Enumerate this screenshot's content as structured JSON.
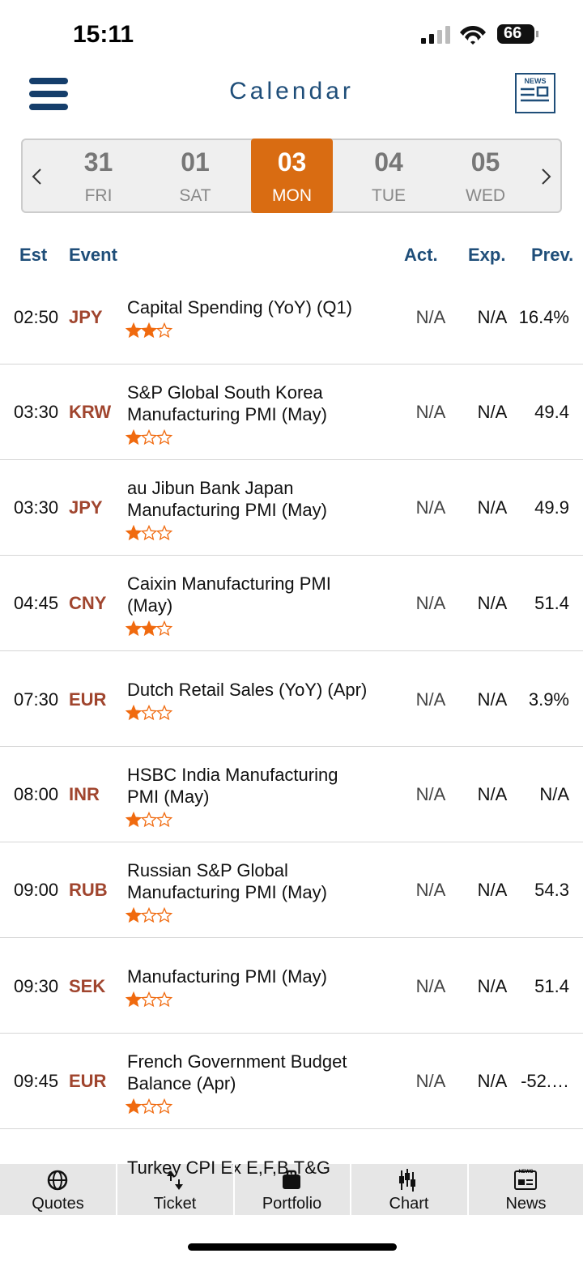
{
  "status_bar": {
    "time": "15:11",
    "battery": "66"
  },
  "header": {
    "title": "Calendar",
    "news_icon_label": "NEWS"
  },
  "date_selector": {
    "selected": 2,
    "dates": [
      {
        "day": "31",
        "weekday": "FRI"
      },
      {
        "day": "01",
        "weekday": "SAT"
      },
      {
        "day": "03",
        "weekday": "MON"
      },
      {
        "day": "04",
        "weekday": "TUE"
      },
      {
        "day": "05",
        "weekday": "WED"
      }
    ]
  },
  "table": {
    "columns": {
      "est": "Est",
      "event": "Event",
      "act": "Act.",
      "exp": "Exp.",
      "prev": "Prev."
    },
    "rows": [
      {
        "time": "02:50",
        "currency": "JPY",
        "event": [
          "Capital Spending (YoY) (Q1)"
        ],
        "importance": 2,
        "act": "N/A",
        "exp": "N/A",
        "prev": "16.4%"
      },
      {
        "time": "03:30",
        "currency": "KRW",
        "event": [
          "S&P Global South Korea",
          "Manufacturing PMI (May)"
        ],
        "importance": 1,
        "act": "N/A",
        "exp": "N/A",
        "prev": "49.4"
      },
      {
        "time": "03:30",
        "currency": "JPY",
        "event": [
          "au Jibun Bank Japan",
          "Manufacturing PMI (May)"
        ],
        "importance": 1,
        "act": "N/A",
        "exp": "N/A",
        "prev": "49.9"
      },
      {
        "time": "04:45",
        "currency": "CNY",
        "event": [
          "Caixin Manufacturing PMI",
          "(May)"
        ],
        "importance": 2,
        "act": "N/A",
        "exp": "N/A",
        "prev": "51.4"
      },
      {
        "time": "07:30",
        "currency": "EUR",
        "event": [
          "Dutch Retail Sales (YoY) (Apr)"
        ],
        "importance": 1,
        "act": "N/A",
        "exp": "N/A",
        "prev": "3.9%"
      },
      {
        "time": "08:00",
        "currency": "INR",
        "event": [
          "HSBC India Manufacturing",
          "PMI (May)"
        ],
        "importance": 1,
        "act": "N/A",
        "exp": "N/A",
        "prev": "N/A"
      },
      {
        "time": "09:00",
        "currency": "RUB",
        "event": [
          "Russian S&P Global",
          "Manufacturing PMI (May)"
        ],
        "importance": 1,
        "act": "N/A",
        "exp": "N/A",
        "prev": "54.3"
      },
      {
        "time": "09:30",
        "currency": "SEK",
        "event": [
          "Manufacturing PMI (May)"
        ],
        "importance": 1,
        "act": "N/A",
        "exp": "N/A",
        "prev": "51.4"
      },
      {
        "time": "09:45",
        "currency": "EUR",
        "event": [
          "French Government Budget",
          "Balance (Apr)"
        ],
        "importance": 1,
        "act": "N/A",
        "exp": "N/A",
        "prev": "-52.…"
      },
      {
        "event": [
          "Turkey CPI Ex E,F,B,T&G"
        ]
      }
    ]
  },
  "tab_bar": {
    "tabs": [
      "Quotes",
      "Ticket",
      "Portfolio",
      "Chart",
      "News"
    ],
    "news_icon_label": "NEWS"
  }
}
